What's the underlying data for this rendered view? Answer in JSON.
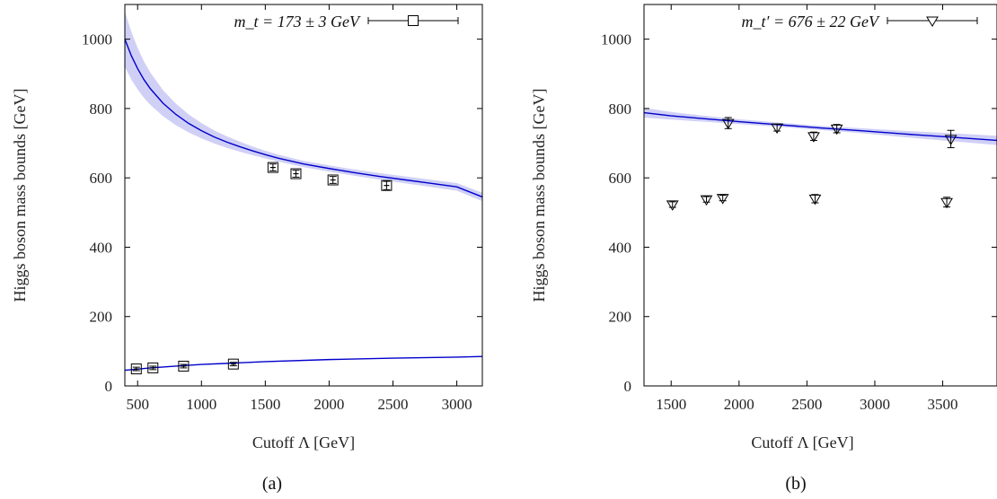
{
  "chart_data": [
    {
      "type": "scatter",
      "panel_caption": "(a)",
      "xlabel": "Cutoff Λ  [GeV]",
      "ylabel": "Higgs boson mass bounds [GeV]",
      "xlim": [
        400,
        3200
      ],
      "ylim": [
        0,
        1100
      ],
      "xticks": [
        500,
        1000,
        1500,
        2000,
        2500,
        3000
      ],
      "yticks": [
        0,
        200,
        400,
        600,
        800,
        1000
      ],
      "legend": {
        "label": "m_t = 173 ± 3 GeV",
        "marker": "square",
        "position": "top-right"
      },
      "series": [
        {
          "name": "upper",
          "marker": "square",
          "points": [
            [
              1560,
              630,
              10
            ],
            [
              1740,
              612,
              10
            ],
            [
              2030,
              594,
              10
            ],
            [
              2450,
              578,
              12
            ]
          ]
        },
        {
          "name": "lower",
          "marker": "square",
          "points": [
            [
              490,
              49,
              5
            ],
            [
              620,
              52,
              5
            ],
            [
              860,
              57,
              5
            ],
            [
              1250,
              63,
              5
            ]
          ]
        }
      ],
      "fits": [
        {
          "name": "upper fit",
          "color": "#0000cc",
          "x": [
            400,
            450,
            500,
            550,
            600,
            700,
            800,
            900,
            1000,
            1100,
            1200,
            1300,
            1400,
            1500,
            1600,
            1800,
            2000,
            2200,
            2400,
            2600,
            2800,
            3000,
            3200
          ],
          "y": [
            1000,
            953,
            915,
            883,
            857,
            815,
            783,
            757,
            736,
            718,
            703,
            690,
            678,
            667,
            657,
            640,
            627,
            615,
            604,
            594,
            584,
            574,
            545
          ],
          "band": [
            160,
            138,
            120,
            105,
            93,
            75,
            62,
            52,
            44,
            38,
            33,
            29,
            25,
            22,
            20,
            18,
            18,
            18,
            19,
            20,
            21,
            22,
            24
          ]
        },
        {
          "name": "lower fit",
          "color": "#0000cc",
          "x": [
            400,
            600,
            800,
            1000,
            1200,
            1500,
            2000,
            2500,
            3000,
            3200
          ],
          "y": [
            45,
            52,
            57,
            62,
            65,
            70,
            76,
            80,
            83,
            85
          ]
        }
      ]
    },
    {
      "type": "scatter",
      "panel_caption": "(b)",
      "xlabel": "Cutoff Λ  [GeV]",
      "ylabel": "Higgs boson mass bounds [GeV]",
      "xlim": [
        1300,
        3900
      ],
      "ylim": [
        0,
        1100
      ],
      "xticks": [
        1500,
        2000,
        2500,
        3000,
        3500
      ],
      "yticks": [
        0,
        200,
        400,
        600,
        800,
        1000
      ],
      "legend": {
        "label": "m_t′ = 676 ± 22 GeV",
        "marker": "triangle-down",
        "position": "top-right"
      },
      "series": [
        {
          "name": "upper",
          "marker": "triangle-down",
          "points": [
            [
              1920,
              758,
              16
            ],
            [
              2280,
              745,
              10
            ],
            [
              2550,
              720,
              12
            ],
            [
              2720,
              742,
              12
            ],
            [
              3560,
              712,
              25
            ]
          ]
        },
        {
          "name": "lower",
          "marker": "triangle-down",
          "points": [
            [
              1510,
              523,
              8
            ],
            [
              1760,
              538,
              8
            ],
            [
              1880,
              542,
              8
            ],
            [
              2560,
              540,
              12
            ],
            [
              3530,
              530,
              14
            ]
          ]
        }
      ],
      "fits": [
        {
          "name": "upper fit",
          "color": "#0000cc",
          "x": [
            1300,
            1500,
            1700,
            2000,
            2300,
            2600,
            2900,
            3200,
            3500,
            3900
          ],
          "y": [
            788,
            779,
            772,
            762,
            753,
            744,
            736,
            727,
            719,
            708
          ],
          "band": [
            28,
            22,
            18,
            14,
            12,
            12,
            14,
            18,
            22,
            27
          ]
        }
      ]
    }
  ]
}
